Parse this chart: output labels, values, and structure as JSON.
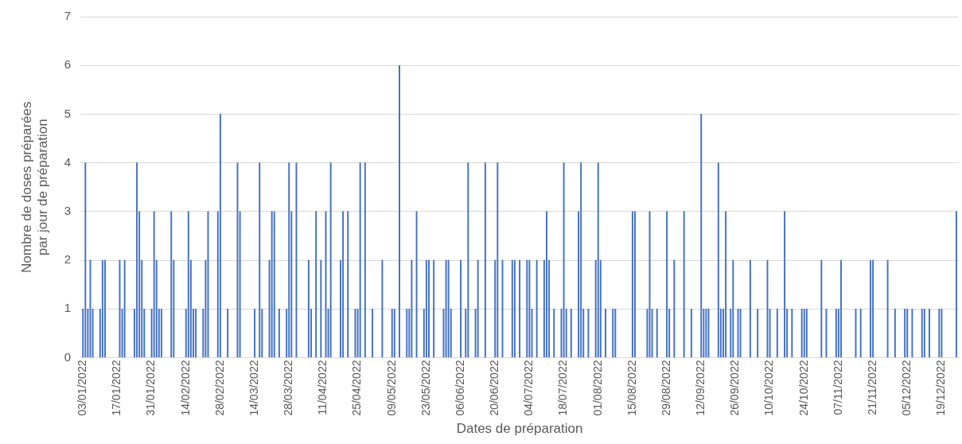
{
  "chart_data": {
    "type": "bar",
    "xlabel": "Dates de préparation",
    "ylabel": "Nombre de doses préparées par jour de préparation",
    "color": "#4472c4",
    "x": [
      "2022-01-03",
      "2022-01-04",
      "2022-01-05",
      "2022-01-06",
      "2022-01-07",
      "2022-01-10",
      "2022-01-11",
      "2022-01-12",
      "2022-01-18",
      "2022-01-19",
      "2022-01-20",
      "2022-01-24",
      "2022-01-25",
      "2022-01-26",
      "2022-01-27",
      "2022-01-28",
      "2022-01-31",
      "2022-02-01",
      "2022-02-02",
      "2022-02-03",
      "2022-02-04",
      "2022-02-08",
      "2022-02-09",
      "2022-02-14",
      "2022-02-15",
      "2022-02-16",
      "2022-02-17",
      "2022-02-18",
      "2022-02-21",
      "2022-02-22",
      "2022-02-23",
      "2022-02-27",
      "2022-02-28",
      "2022-03-03",
      "2022-03-07",
      "2022-03-08",
      "2022-03-14",
      "2022-03-16",
      "2022-03-17",
      "2022-03-20",
      "2022-03-21",
      "2022-03-22",
      "2022-03-24",
      "2022-03-27",
      "2022-03-28",
      "2022-03-29",
      "2022-03-31",
      "2022-04-05",
      "2022-04-06",
      "2022-04-08",
      "2022-04-10",
      "2022-04-12",
      "2022-04-13",
      "2022-04-14",
      "2022-04-18",
      "2022-04-19",
      "2022-04-21",
      "2022-04-24",
      "2022-04-25",
      "2022-04-26",
      "2022-04-28",
      "2022-05-01",
      "2022-05-05",
      "2022-05-09",
      "2022-05-10",
      "2022-05-12",
      "2022-05-15",
      "2022-05-16",
      "2022-05-17",
      "2022-05-19",
      "2022-05-22",
      "2022-05-23",
      "2022-05-24",
      "2022-05-26",
      "2022-05-30",
      "2022-05-31",
      "2022-06-01",
      "2022-06-02",
      "2022-06-06",
      "2022-06-08",
      "2022-06-09",
      "2022-06-12",
      "2022-06-13",
      "2022-06-16",
      "2022-06-20",
      "2022-06-21",
      "2022-06-23",
      "2022-06-27",
      "2022-06-28",
      "2022-06-30",
      "2022-07-03",
      "2022-07-04",
      "2022-07-05",
      "2022-07-07",
      "2022-07-10",
      "2022-07-11",
      "2022-07-12",
      "2022-07-14",
      "2022-07-17",
      "2022-07-18",
      "2022-07-19",
      "2022-07-21",
      "2022-07-24",
      "2022-07-25",
      "2022-07-26",
      "2022-07-28",
      "2022-07-31",
      "2022-08-01",
      "2022-08-02",
      "2022-08-04",
      "2022-08-07",
      "2022-08-08",
      "2022-08-15",
      "2022-08-16",
      "2022-08-21",
      "2022-08-22",
      "2022-08-23",
      "2022-08-25",
      "2022-08-29",
      "2022-08-30",
      "2022-09-01",
      "2022-09-05",
      "2022-09-08",
      "2022-09-12",
      "2022-09-13",
      "2022-09-14",
      "2022-09-15",
      "2022-09-19",
      "2022-09-20",
      "2022-09-21",
      "2022-09-22",
      "2022-09-24",
      "2022-09-25",
      "2022-09-27",
      "2022-09-28",
      "2022-10-02",
      "2022-10-05",
      "2022-10-09",
      "2022-10-10",
      "2022-10-13",
      "2022-10-16",
      "2022-10-17",
      "2022-10-19",
      "2022-10-23",
      "2022-10-24",
      "2022-10-25",
      "2022-10-31",
      "2022-11-02",
      "2022-11-06",
      "2022-11-07",
      "2022-11-08",
      "2022-11-14",
      "2022-11-16",
      "2022-11-20",
      "2022-11-21",
      "2022-11-27",
      "2022-11-30",
      "2022-12-04",
      "2022-12-05",
      "2022-12-07",
      "2022-12-11",
      "2022-12-12",
      "2022-12-14",
      "2022-12-18",
      "2022-12-19",
      "2022-12-25"
    ],
    "values": [
      1,
      4,
      1,
      2,
      1,
      1,
      2,
      2,
      2,
      1,
      2,
      1,
      4,
      3,
      2,
      1,
      1,
      3,
      2,
      1,
      1,
      3,
      2,
      1,
      3,
      2,
      1,
      1,
      1,
      2,
      3,
      3,
      5,
      1,
      4,
      3,
      1,
      4,
      1,
      2,
      3,
      3,
      1,
      1,
      4,
      3,
      4,
      2,
      1,
      3,
      2,
      3,
      1,
      4,
      2,
      3,
      3,
      1,
      1,
      4,
      4,
      1,
      2,
      1,
      1,
      6,
      1,
      1,
      2,
      3,
      1,
      2,
      2,
      2,
      1,
      2,
      2,
      1,
      2,
      1,
      4,
      1,
      2,
      4,
      2,
      4,
      2,
      2,
      2,
      2,
      2,
      2,
      1,
      2,
      2,
      3,
      2,
      1,
      1,
      4,
      1,
      1,
      3,
      4,
      1,
      1,
      2,
      4,
      2,
      1,
      1,
      1,
      3,
      3,
      1,
      3,
      1,
      1,
      3,
      1,
      2,
      3,
      1,
      5,
      1,
      1,
      1,
      4,
      1,
      1,
      3,
      1,
      2,
      1,
      1,
      2,
      1,
      2,
      1,
      1,
      3,
      1,
      1,
      1,
      1,
      1,
      2,
      1,
      1,
      1,
      2,
      1,
      1,
      2,
      2,
      2,
      1,
      1,
      1,
      1,
      1,
      1,
      1,
      1,
      1,
      3
    ],
    "xlim": [
      "2022-01-02",
      "2022-12-26"
    ],
    "xticks": [
      {
        "value": "2022-01-03",
        "label": "03/01/2022"
      },
      {
        "value": "2022-01-17",
        "label": "17/01/2022"
      },
      {
        "value": "2022-01-31",
        "label": "31/01/2022"
      },
      {
        "value": "2022-02-14",
        "label": "14/02/2022"
      },
      {
        "value": "2022-02-28",
        "label": "28/02/2022"
      },
      {
        "value": "2022-03-14",
        "label": "14/03/2022"
      },
      {
        "value": "2022-03-28",
        "label": "28/03/2022"
      },
      {
        "value": "2022-04-11",
        "label": "11/04/2022"
      },
      {
        "value": "2022-04-25",
        "label": "25/04/2022"
      },
      {
        "value": "2022-05-09",
        "label": "09/05/2022"
      },
      {
        "value": "2022-05-23",
        "label": "23/05/2022"
      },
      {
        "value": "2022-06-06",
        "label": "06/06/2022"
      },
      {
        "value": "2022-06-20",
        "label": "20/06/2022"
      },
      {
        "value": "2022-07-04",
        "label": "04/07/2022"
      },
      {
        "value": "2022-07-18",
        "label": "18/07/2022"
      },
      {
        "value": "2022-08-01",
        "label": "01/08/2022"
      },
      {
        "value": "2022-08-15",
        "label": "15/08/2022"
      },
      {
        "value": "2022-08-29",
        "label": "29/08/2022"
      },
      {
        "value": "2022-09-12",
        "label": "12/09/2022"
      },
      {
        "value": "2022-09-26",
        "label": "26/09/2022"
      },
      {
        "value": "2022-10-10",
        "label": "10/10/2022"
      },
      {
        "value": "2022-10-24",
        "label": "24/10/2022"
      },
      {
        "value": "2022-11-07",
        "label": "07/11/2022"
      },
      {
        "value": "2022-11-21",
        "label": "21/11/2022"
      },
      {
        "value": "2022-12-05",
        "label": "05/12/2022"
      },
      {
        "value": "2022-12-19",
        "label": "19/12/2022"
      }
    ],
    "ylim": [
      0,
      7
    ],
    "yticks": [
      0,
      1,
      2,
      3,
      4,
      5,
      6,
      7
    ],
    "grid": "y"
  }
}
